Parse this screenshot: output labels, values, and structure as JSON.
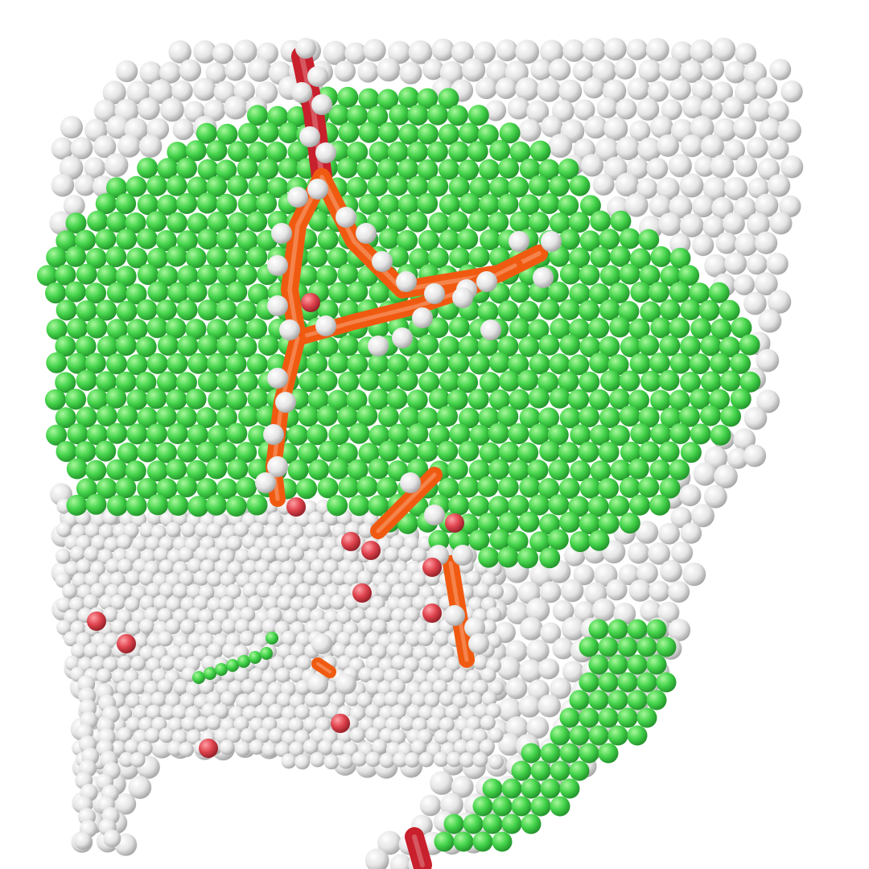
{
  "scene": {
    "subject": "atomistic-render",
    "background": "#ffffff",
    "colors": {
      "white_atom": "#e6e6e6",
      "white_atom_light": "#ffffff",
      "white_atom_dark": "#9a9a9a",
      "green_atom": "#45d64c",
      "green_atom_light": "#a6f59a",
      "green_atom_dark": "#1f8a27",
      "red_atom": "#e0454e",
      "red_atom_light": "#ff9aa0",
      "red_atom_dark": "#8a1a22",
      "dislocation_orange": "#f05a10",
      "dislocation_red": "#c8202c"
    },
    "legend": []
  }
}
